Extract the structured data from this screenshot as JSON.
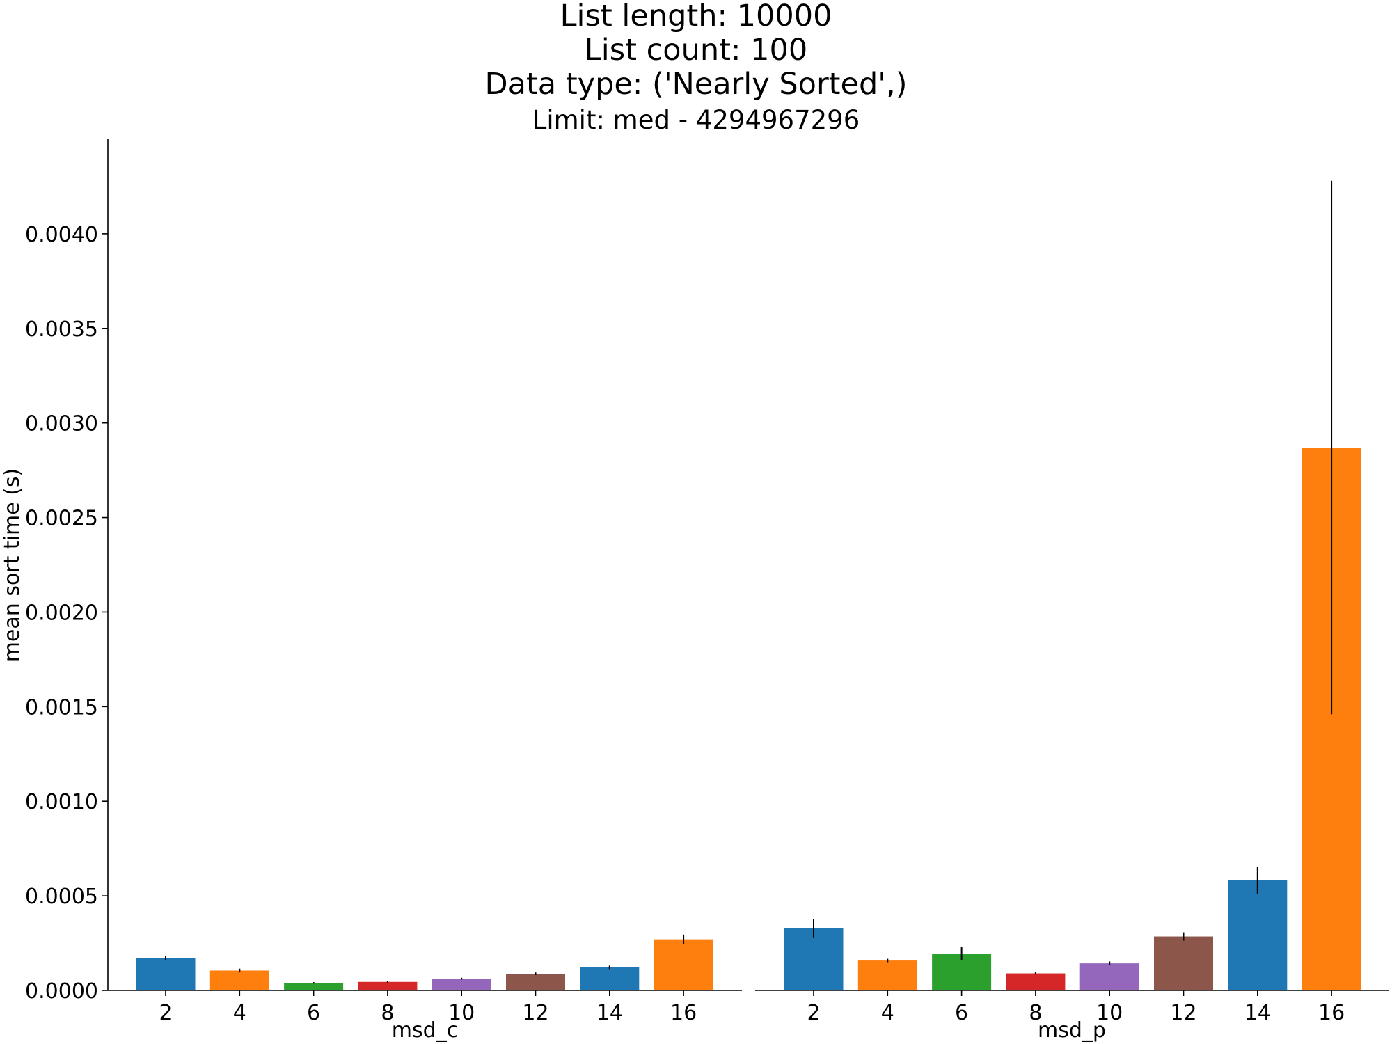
{
  "title_lines": [
    "List length: 10000",
    "List count: 100",
    "Data type: ('Nearly Sorted',)",
    "Limit: med - 4294967296"
  ],
  "chart_data": {
    "type": "bar",
    "ylabel": "mean sort time (s)",
    "ylim": [
      0,
      0.0045
    ],
    "yticks": [
      0.0,
      0.0005,
      0.001,
      0.0015,
      0.002,
      0.0025,
      0.003,
      0.0035,
      0.004
    ],
    "ytick_labels": [
      "0.0000",
      "0.0005",
      "0.0010",
      "0.0015",
      "0.0020",
      "0.0025",
      "0.0030",
      "0.0035",
      "0.0040"
    ],
    "colors": [
      "#1f77b4",
      "#ff7f0e",
      "#2ca02c",
      "#d62728",
      "#9467bd",
      "#8c564b",
      "#1f77b4",
      "#ff7f0e"
    ],
    "panels": [
      {
        "xlabel": "msd_c",
        "categories": [
          "2",
          "4",
          "6",
          "8",
          "10",
          "12",
          "14",
          "16"
        ],
        "values": [
          0.000172,
          0.000105,
          4e-05,
          4.5e-05,
          6.2e-05,
          8.8e-05,
          0.000122,
          0.00027
        ],
        "errors": [
          1.2e-05,
          1e-05,
          4e-06,
          4e-06,
          5e-06,
          7e-06,
          9e-06,
          2.5e-05
        ]
      },
      {
        "xlabel": "msd_p",
        "categories": [
          "2",
          "4",
          "6",
          "8",
          "10",
          "12",
          "14",
          "16"
        ],
        "values": [
          0.000328,
          0.000158,
          0.000195,
          9e-05,
          0.000143,
          0.000285,
          0.000582,
          0.00287
        ],
        "errors": [
          4.8e-05,
          9e-06,
          3.5e-05,
          6e-06,
          1e-05,
          2.2e-05,
          7e-05,
          0.00141
        ]
      }
    ]
  }
}
